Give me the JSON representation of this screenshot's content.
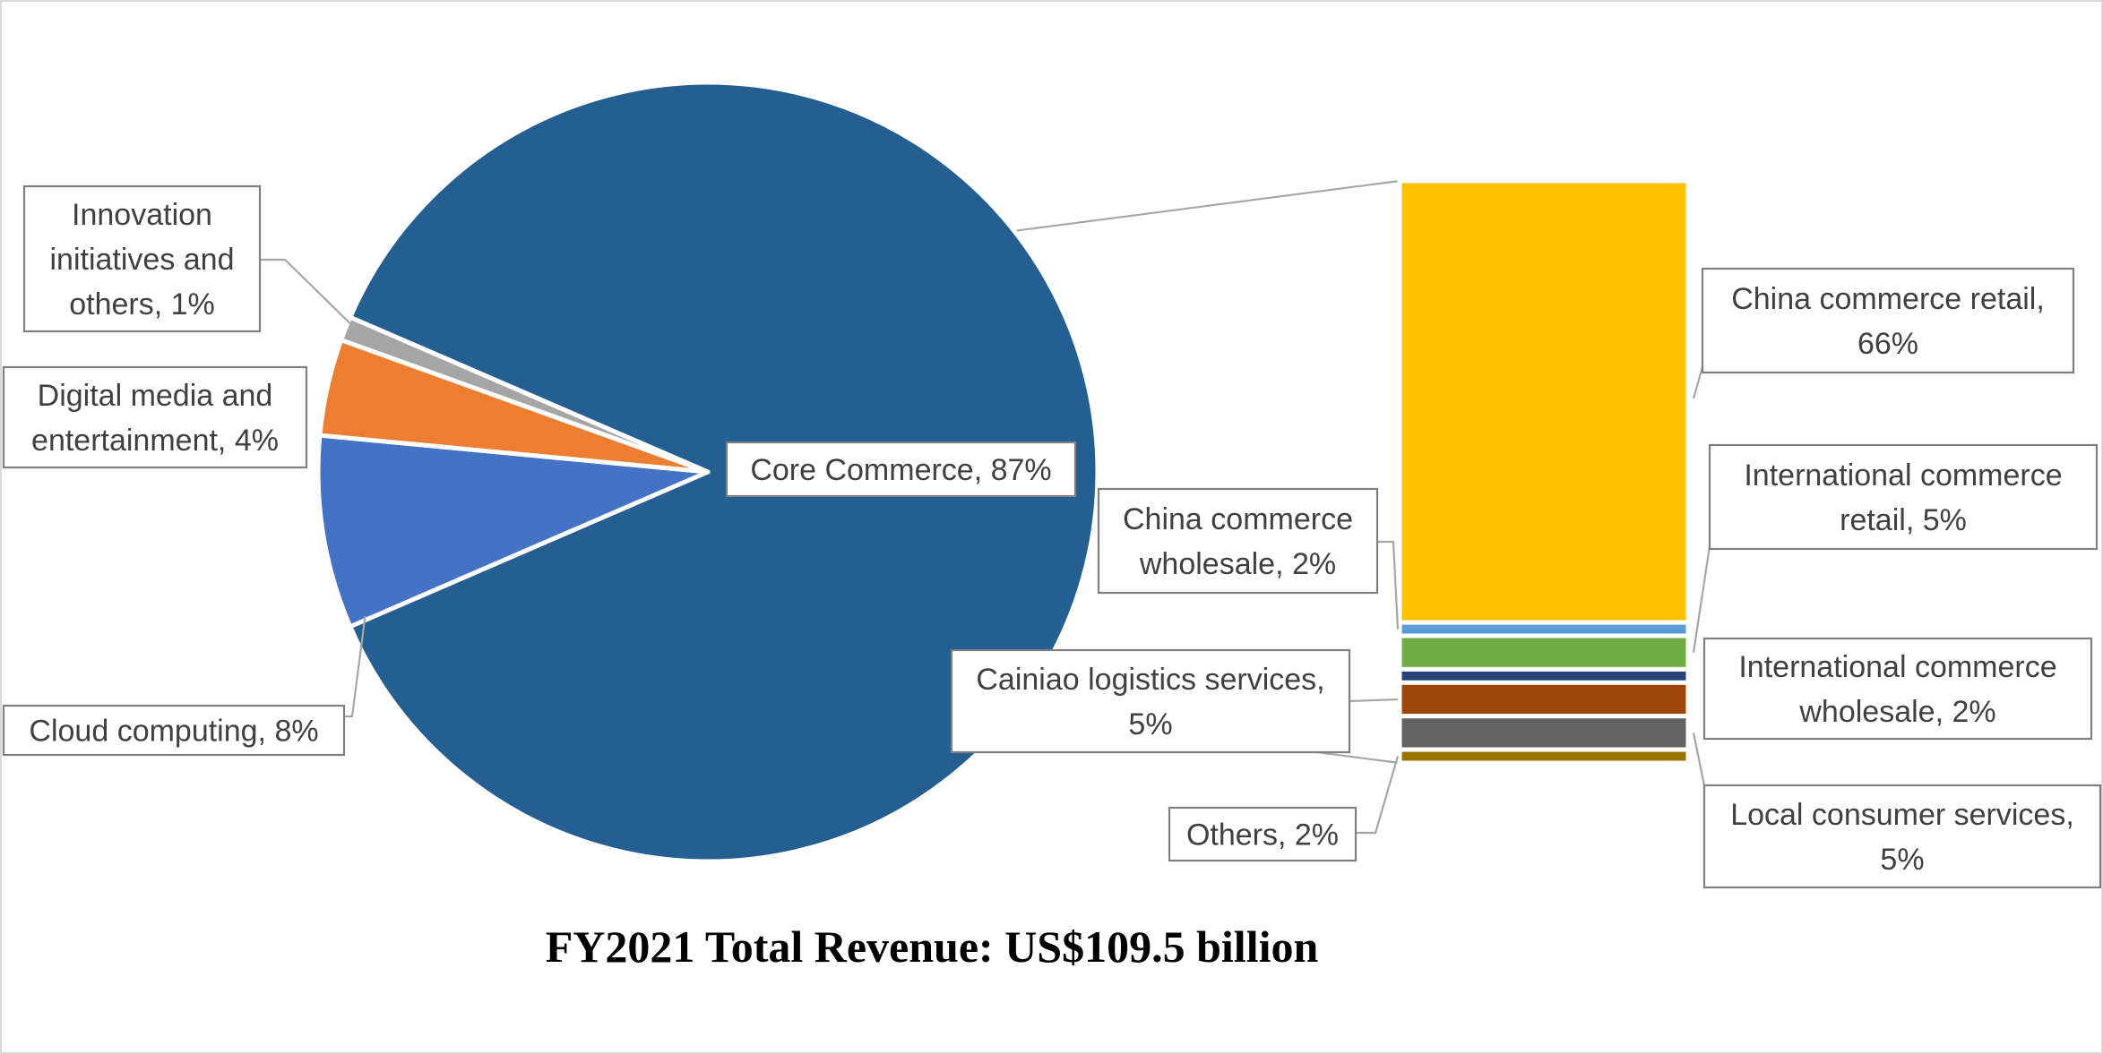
{
  "chart_data": {
    "type": "pie",
    "subtype": "pie-of-bar",
    "title": "FY2021 Total Revenue: US$109.5 billion",
    "pie": {
      "slices": [
        {
          "label": "Core Commerce",
          "value": 87,
          "display": "87%",
          "color": "#255E91"
        },
        {
          "label": "Cloud computing",
          "value": 8,
          "display": "8%",
          "color": "#4472C4"
        },
        {
          "label": "Digital media and entertainment",
          "value": 4,
          "display": "4%",
          "color": "#ED7D31"
        },
        {
          "label": "Innovation initiatives and others",
          "value": 1,
          "display": "1%",
          "color": "#A5A5A5"
        }
      ],
      "exploded_slice": "Core Commerce"
    },
    "bar": {
      "breakdown_of": "Core Commerce",
      "segments": [
        {
          "label": "China commerce retail",
          "value": 66,
          "display": "66%",
          "color": "#FFC000"
        },
        {
          "label": "China commerce wholesale",
          "value": 2,
          "display": "2%",
          "color": "#5B9BD5"
        },
        {
          "label": "International commerce retail",
          "value": 5,
          "display": "5%",
          "color": "#70AD47"
        },
        {
          "label": "International commerce wholesale",
          "value": 2,
          "display": "2%",
          "color": "#264478"
        },
        {
          "label": "Cainiao logistics services",
          "value": 5,
          "display": "5%",
          "color": "#9E480E"
        },
        {
          "label": "Local consumer services",
          "value": 5,
          "display": "5%",
          "color": "#636363"
        },
        {
          "label": "Others",
          "value": 2,
          "display": "2%",
          "color": "#997300"
        }
      ]
    },
    "data_labels": [
      {
        "id": "innovation",
        "lines": [
          "Innovation",
          "initiatives and",
          "others, 1%"
        ]
      },
      {
        "id": "digital",
        "lines": [
          "Digital media and",
          "entertainment, 4%"
        ]
      },
      {
        "id": "cloud",
        "lines": [
          "Cloud computing, 8%"
        ]
      },
      {
        "id": "core",
        "lines": [
          "Core Commerce, 87%"
        ]
      },
      {
        "id": "ccr",
        "lines": [
          "China commerce retail,",
          "66%"
        ]
      },
      {
        "id": "ccw",
        "lines": [
          "China commerce",
          "wholesale, 2%"
        ]
      },
      {
        "id": "icr",
        "lines": [
          "International commerce",
          "retail, 5%"
        ]
      },
      {
        "id": "icw",
        "lines": [
          "International commerce",
          "wholesale, 2%"
        ]
      },
      {
        "id": "cainiao",
        "lines": [
          "Cainiao logistics services,",
          "5%"
        ]
      },
      {
        "id": "local",
        "lines": [
          "Local consumer services,",
          "5%"
        ]
      },
      {
        "id": "others",
        "lines": [
          "Others, 2%"
        ]
      }
    ],
    "legend": "none"
  }
}
